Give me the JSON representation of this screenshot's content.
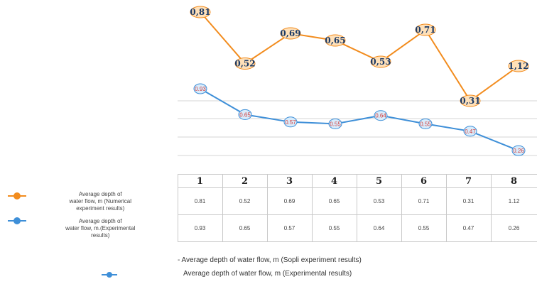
{
  "chart_data": {
    "type": "line",
    "x": [
      "1",
      "2",
      "3",
      "4",
      "5",
      "6",
      "7",
      "8"
    ],
    "series": [
      {
        "name": "Average depth of water flow, m (Numerical experiment results)",
        "color": "#f28c1e",
        "values": [
          0.81,
          0.52,
          0.69,
          0.65,
          0.53,
          0.71,
          0.31,
          1.12
        ],
        "labels": [
          "0,81",
          "0,52",
          "0,69",
          "0,65",
          "0,53",
          "0,71",
          "0,31",
          "1,12"
        ]
      },
      {
        "name": "Average depth of water flow, m (Experimental results)",
        "color": "#3e8fd8",
        "values": [
          0.93,
          0.65,
          0.57,
          0.55,
          0.64,
          0.55,
          0.47,
          0.26
        ],
        "labels": [
          "0.93",
          "0.65",
          "0.57",
          "0.55",
          "0.64",
          "0.55",
          "0.47",
          "0.26"
        ]
      }
    ],
    "grid": true
  },
  "table": {
    "x_headers": [
      "1",
      "2",
      "3",
      "4",
      "5",
      "6",
      "7",
      "8"
    ],
    "rows": [
      {
        "legend_line1": "Average depth of",
        "legend_line2": "water flow, m (Numerical",
        "legend_line3": "experiment results)",
        "color": "#f28c1e",
        "cells": [
          "0.81",
          "0.52",
          "0.69",
          "0.65",
          "0.53",
          "0.71",
          "0.31",
          "1.12"
        ]
      },
      {
        "legend_line1": "Average depth of",
        "legend_line2": "water flow, m.(Experimental",
        "legend_line3": "results)",
        "color": "#3e8fd8",
        "cells": [
          "0.93",
          "0.65",
          "0.57",
          "0.55",
          "0.64",
          "0.55",
          "0.47",
          "0.26"
        ]
      }
    ]
  },
  "bottom_legend": {
    "line1": "- Average depth of water flow, m (Sopli experiment results)",
    "line2": "Average depth of water flow, m (Experimental results)"
  }
}
